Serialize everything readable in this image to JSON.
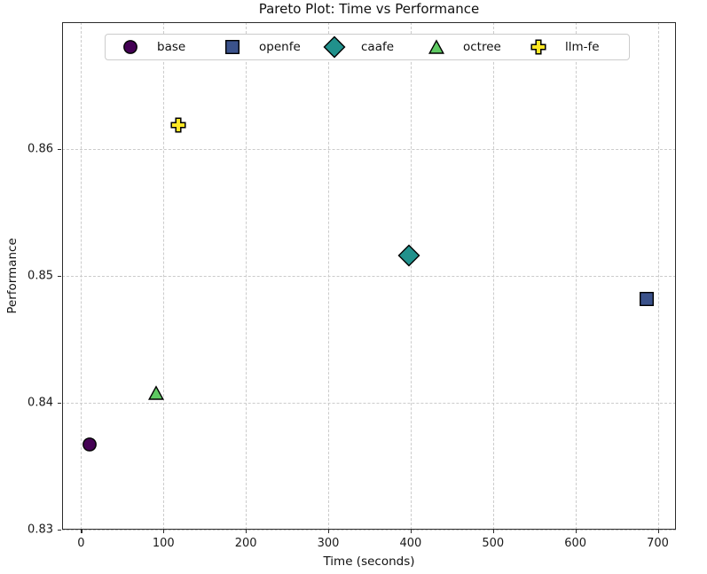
{
  "chart_data": {
    "type": "scatter",
    "title": "Pareto Plot: Time vs Performance",
    "xlabel": "Time (seconds)",
    "ylabel": "Performance",
    "xlim": [
      -23,
      722
    ],
    "ylim": [
      0.83,
      0.87
    ],
    "x_ticks": [
      0,
      100,
      200,
      300,
      400,
      500,
      600,
      700
    ],
    "x_tick_labels": [
      "0",
      "100",
      "200",
      "300",
      "400",
      "500",
      "600",
      "700"
    ],
    "y_ticks": [
      0.83,
      0.84,
      0.85,
      0.86
    ],
    "y_tick_labels": [
      "0.83",
      "0.84",
      "0.85",
      "0.86"
    ],
    "grid": "dashed",
    "grid_color": "#cbcbcb",
    "legend_position": "upper-center-inside",
    "marker_edge_color": "#000000",
    "series": [
      {
        "name": "base",
        "marker": "circle",
        "color": "#440154",
        "x": 10,
        "y": 0.8367
      },
      {
        "name": "openfe",
        "marker": "square",
        "color": "#3b528b",
        "x": 686,
        "y": 0.8482
      },
      {
        "name": "caafe",
        "marker": "diamond",
        "color": "#21918c",
        "x": 398,
        "y": 0.8516
      },
      {
        "name": "octree",
        "marker": "triangle",
        "color": "#5ec962",
        "x": 91,
        "y": 0.8408
      },
      {
        "name": "llm-fe",
        "marker": "plus",
        "color": "#fde725",
        "x": 118,
        "y": 0.8619
      }
    ]
  }
}
